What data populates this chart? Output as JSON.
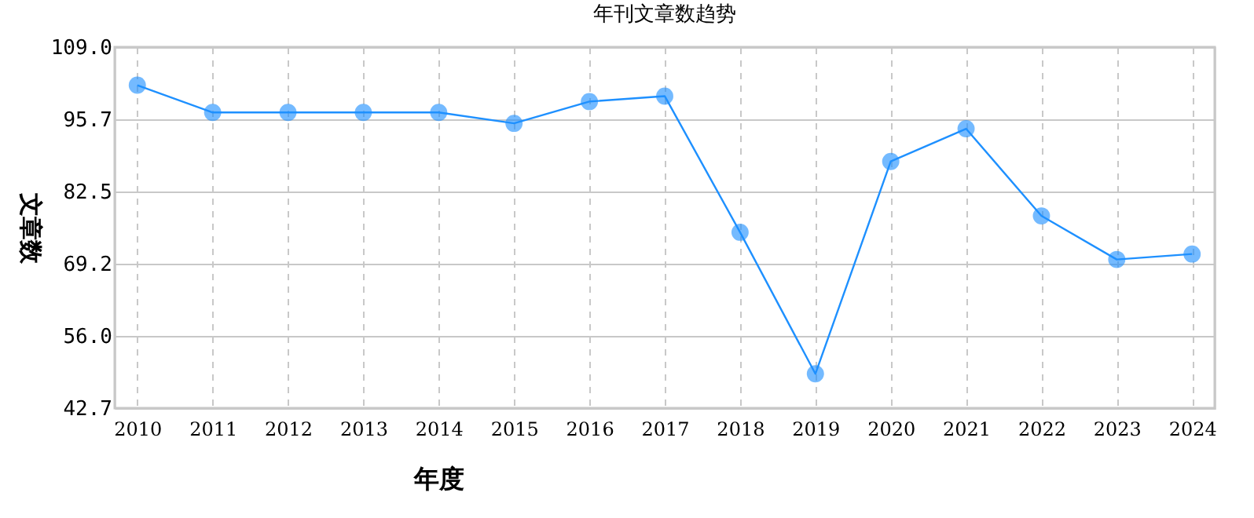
{
  "chart_data": {
    "type": "line",
    "title": "年刊文章数趋势",
    "xlabel": "年度",
    "ylabel": "文章数",
    "categories": [
      "2010",
      "2011",
      "2012",
      "2013",
      "2014",
      "2015",
      "2016",
      "2017",
      "2018",
      "2019",
      "2020",
      "2021",
      "2022",
      "2023",
      "2024"
    ],
    "series": [
      {
        "color": "#1e90ff",
        "values": [
          102,
          97,
          97,
          97,
          97,
          95,
          99,
          100,
          75,
          49,
          88,
          94,
          78,
          70,
          71
        ]
      }
    ],
    "marker": "circle",
    "line_style": "solid",
    "ylim": [
      42.7,
      109.0
    ],
    "yticks": [
      {
        "value": 42.7,
        "label": "42.7"
      },
      {
        "value": 56.0,
        "label": "56.0"
      },
      {
        "value": 69.2,
        "label": "69.2"
      },
      {
        "value": 82.5,
        "label": "82.5"
      },
      {
        "value": 95.7,
        "label": "95.7"
      },
      {
        "value": 109.0,
        "label": "109.0"
      }
    ],
    "grid": true
  }
}
